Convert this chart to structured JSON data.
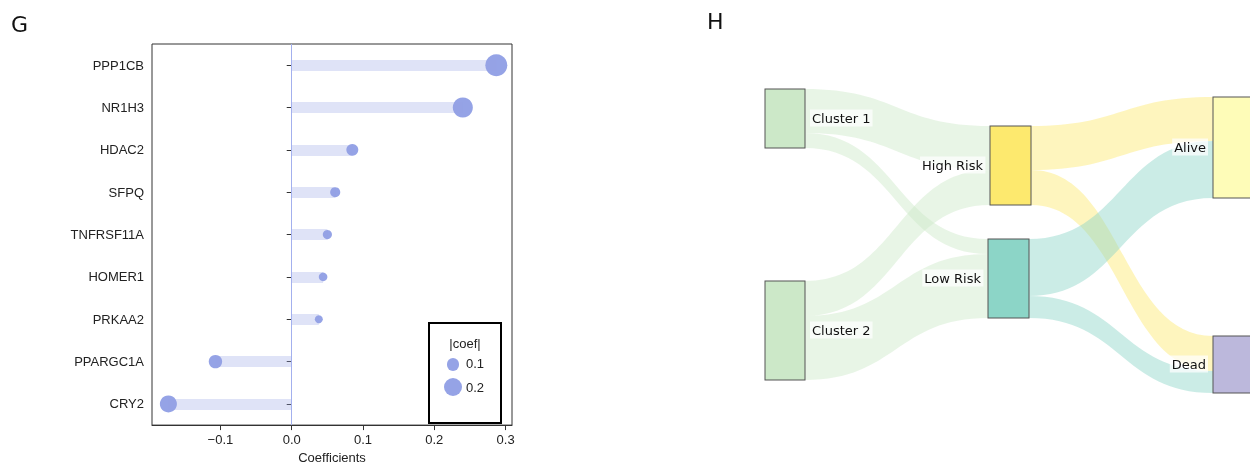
{
  "chart_data": [
    {
      "type": "lollipop",
      "title": "G",
      "xlabel": "Coefficients",
      "orientation": "horizontal",
      "categories": [
        "PPP1CB",
        "NR1H3",
        "HDAC2",
        "SFPQ",
        "TNFRSF11A",
        "HOMER1",
        "PRKAA2",
        "PPARGC1A",
        "CRY2"
      ],
      "series": [
        {
          "color": "#95a3e6",
          "values": [
            0.287,
            0.24,
            0.085,
            0.061,
            0.05,
            0.044,
            0.038,
            -0.107,
            -0.173
          ],
          "sizes": [
            0.287,
            0.24,
            0.085,
            0.061,
            0.05,
            0.044,
            0.038,
            0.107,
            0.173
          ]
        }
      ],
      "size_legend": [
        0.1,
        0.2
      ],
      "legend_title": "|coef|",
      "xlim": [
        -0.196,
        0.309
      ],
      "xticks": [
        {
          "value": -0.1,
          "label": "−0.1"
        },
        {
          "value": 0,
          "label": "0.0"
        },
        0.1,
        0.2,
        0.3
      ],
      "ref_lines": [
        {
          "axis": "x",
          "value": 0,
          "color": "#a3b0ee"
        }
      ],
      "grid": false
    },
    {
      "type": "other",
      "title": "H",
      "categories": [
        "Cluster 1",
        "Cluster 2",
        "High Risk",
        "Low Risk",
        "Alive",
        "Dead"
      ],
      "colors": [
        "#cce8c8",
        "#cce8c8",
        "#fde96e",
        "#8cd5c7",
        "#fefcb8",
        "#bcb8dc"
      ]
    }
  ]
}
